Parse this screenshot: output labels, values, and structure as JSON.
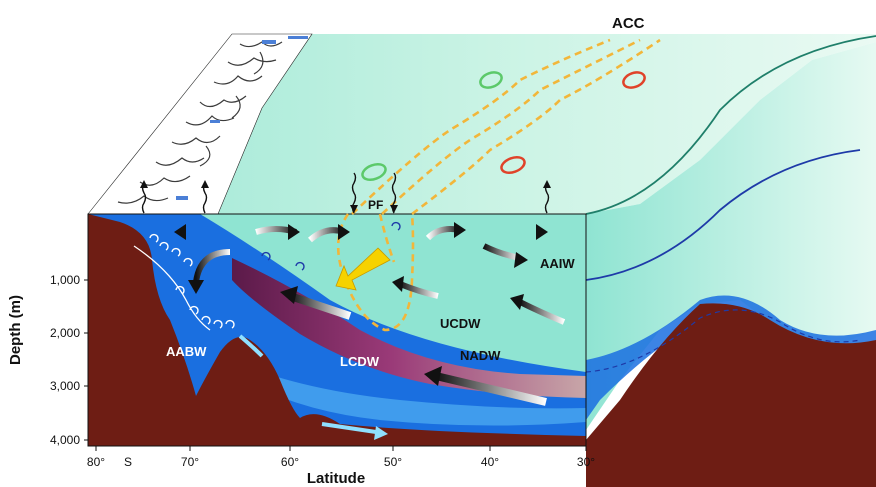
{
  "diagram": {
    "labels": {
      "acc": "ACC",
      "pf": "PF",
      "aaiw": "AAIW",
      "ucdw": "UCDW",
      "nadw": "NADW",
      "lcdw": "LCDW",
      "aabw": "AABW"
    },
    "y_axis": {
      "title": "Depth (m)",
      "ticks": [
        "1,000",
        "2,000",
        "3,000",
        "4,000"
      ]
    },
    "x_axis": {
      "title": "Latitude",
      "ticks": [
        "80°",
        "S",
        "70°",
        "60°",
        "50°",
        "40°",
        "30°"
      ]
    },
    "colors": {
      "sea_floor": "#6e1d14",
      "deep_blue": "#1a6fe0",
      "light_blue": "#4aa8f0",
      "surface_mint": "#c9f3e4",
      "water_mint": "#8fe4d2",
      "purple_band": "#8a2f6d",
      "front_dashed": "#f2b63a",
      "yellow_arrow": "#f6d200",
      "eddy_green": "#5cc96a",
      "eddy_red": "#e0432a",
      "teal_line": "#1f7f6a",
      "navy_line": "#1e3aa8"
    }
  }
}
